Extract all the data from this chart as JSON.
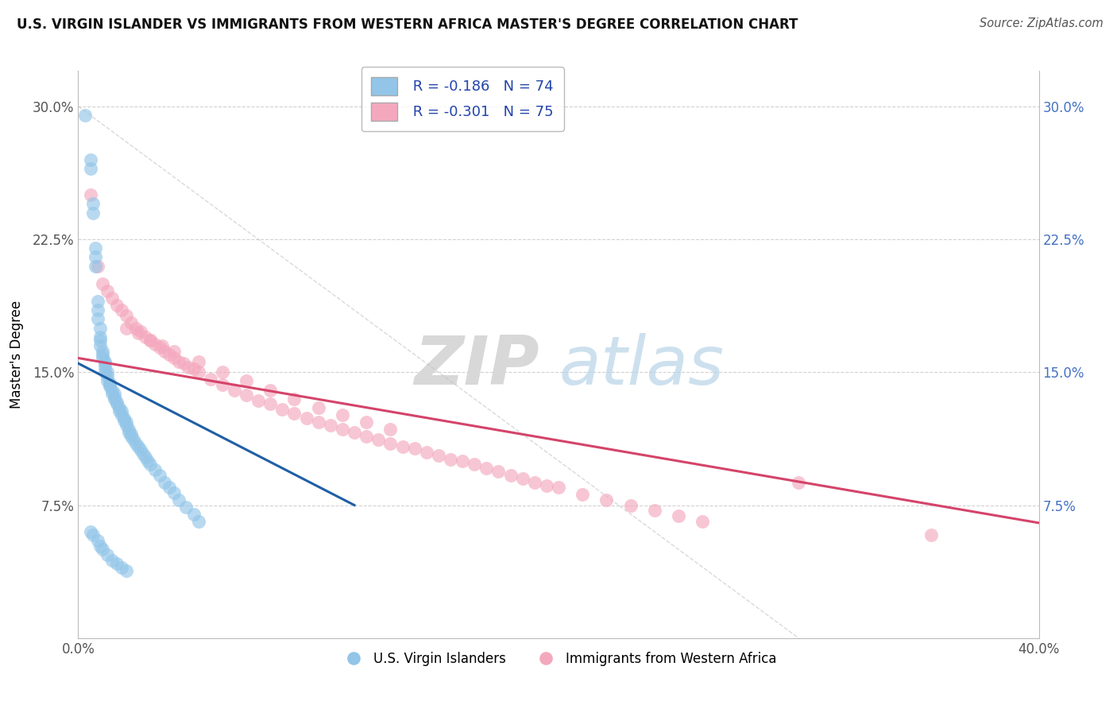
{
  "title": "U.S. VIRGIN ISLANDER VS IMMIGRANTS FROM WESTERN AFRICA MASTER'S DEGREE CORRELATION CHART",
  "source": "Source: ZipAtlas.com",
  "ylabel": "Master's Degree",
  "xlabel_bottom": "U.S. Virgin Islanders",
  "xlabel_top": "Immigrants from Western Africa",
  "xlim": [
    0.0,
    0.4
  ],
  "ylim": [
    0.0,
    0.32
  ],
  "xtick_positions": [
    0.0,
    0.4
  ],
  "xtick_labels": [
    "0.0%",
    "40.0%"
  ],
  "yticks": [
    0.075,
    0.15,
    0.225,
    0.3
  ],
  "ytick_labels": [
    "7.5%",
    "15.0%",
    "22.5%",
    "30.0%"
  ],
  "legend_r1": "R = -0.186",
  "legend_n1": "N = 74",
  "legend_r2": "R = -0.301",
  "legend_n2": "N = 75",
  "color_blue": "#92c5e8",
  "color_pink": "#f4a8be",
  "line_color_blue": "#1f5fa6",
  "line_color_pink": "#d4446a",
  "background_color": "#ffffff",
  "watermark_zip": "ZIP",
  "watermark_atlas": "atlas",
  "blue_line_x": [
    0.0,
    0.115
  ],
  "blue_line_y": [
    0.155,
    0.075
  ],
  "pink_line_x": [
    0.0,
    0.4
  ],
  "pink_line_y": [
    0.158,
    0.065
  ],
  "blue_scatter_x": [
    0.003,
    0.005,
    0.005,
    0.006,
    0.006,
    0.007,
    0.007,
    0.007,
    0.008,
    0.008,
    0.008,
    0.009,
    0.009,
    0.009,
    0.009,
    0.01,
    0.01,
    0.01,
    0.011,
    0.011,
    0.011,
    0.011,
    0.012,
    0.012,
    0.012,
    0.013,
    0.013,
    0.013,
    0.014,
    0.014,
    0.015,
    0.015,
    0.015,
    0.016,
    0.016,
    0.017,
    0.017,
    0.018,
    0.018,
    0.019,
    0.019,
    0.02,
    0.02,
    0.021,
    0.021,
    0.022,
    0.022,
    0.023,
    0.024,
    0.025,
    0.026,
    0.027,
    0.028,
    0.029,
    0.03,
    0.032,
    0.034,
    0.036,
    0.038,
    0.04,
    0.042,
    0.045,
    0.048,
    0.05,
    0.005,
    0.006,
    0.008,
    0.009,
    0.01,
    0.012,
    0.014,
    0.016,
    0.018,
    0.02
  ],
  "blue_scatter_y": [
    0.295,
    0.27,
    0.265,
    0.245,
    0.24,
    0.22,
    0.215,
    0.21,
    0.19,
    0.185,
    0.18,
    0.175,
    0.17,
    0.168,
    0.165,
    0.162,
    0.16,
    0.158,
    0.156,
    0.155,
    0.153,
    0.15,
    0.15,
    0.148,
    0.145,
    0.144,
    0.143,
    0.142,
    0.14,
    0.138,
    0.138,
    0.136,
    0.135,
    0.133,
    0.132,
    0.13,
    0.128,
    0.128,
    0.126,
    0.124,
    0.123,
    0.122,
    0.12,
    0.118,
    0.116,
    0.115,
    0.114,
    0.112,
    0.11,
    0.108,
    0.106,
    0.104,
    0.102,
    0.1,
    0.098,
    0.095,
    0.092,
    0.088,
    0.085,
    0.082,
    0.078,
    0.074,
    0.07,
    0.066,
    0.06,
    0.058,
    0.055,
    0.052,
    0.05,
    0.047,
    0.044,
    0.042,
    0.04,
    0.038
  ],
  "pink_scatter_x": [
    0.005,
    0.008,
    0.01,
    0.012,
    0.014,
    0.016,
    0.018,
    0.02,
    0.022,
    0.024,
    0.026,
    0.028,
    0.03,
    0.032,
    0.034,
    0.036,
    0.038,
    0.04,
    0.042,
    0.044,
    0.046,
    0.048,
    0.05,
    0.055,
    0.06,
    0.065,
    0.07,
    0.075,
    0.08,
    0.085,
    0.09,
    0.095,
    0.1,
    0.105,
    0.11,
    0.115,
    0.12,
    0.125,
    0.13,
    0.135,
    0.14,
    0.145,
    0.15,
    0.155,
    0.16,
    0.165,
    0.17,
    0.175,
    0.18,
    0.185,
    0.19,
    0.195,
    0.2,
    0.21,
    0.22,
    0.23,
    0.24,
    0.25,
    0.26,
    0.3,
    0.02,
    0.025,
    0.03,
    0.035,
    0.04,
    0.05,
    0.06,
    0.07,
    0.08,
    0.09,
    0.1,
    0.11,
    0.12,
    0.13,
    0.355
  ],
  "pink_scatter_y": [
    0.25,
    0.21,
    0.2,
    0.196,
    0.192,
    0.188,
    0.185,
    0.182,
    0.178,
    0.175,
    0.173,
    0.17,
    0.168,
    0.166,
    0.164,
    0.162,
    0.16,
    0.158,
    0.156,
    0.155,
    0.153,
    0.152,
    0.15,
    0.146,
    0.143,
    0.14,
    0.137,
    0.134,
    0.132,
    0.129,
    0.127,
    0.124,
    0.122,
    0.12,
    0.118,
    0.116,
    0.114,
    0.112,
    0.11,
    0.108,
    0.107,
    0.105,
    0.103,
    0.101,
    0.1,
    0.098,
    0.096,
    0.094,
    0.092,
    0.09,
    0.088,
    0.086,
    0.085,
    0.081,
    0.078,
    0.075,
    0.072,
    0.069,
    0.066,
    0.088,
    0.175,
    0.172,
    0.168,
    0.165,
    0.162,
    0.156,
    0.15,
    0.145,
    0.14,
    0.135,
    0.13,
    0.126,
    0.122,
    0.118,
    0.058
  ]
}
